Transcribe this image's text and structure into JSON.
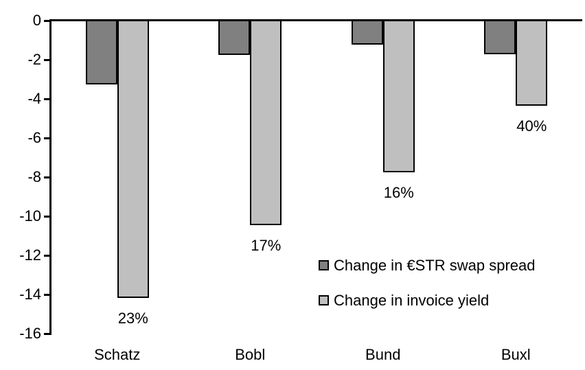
{
  "chart_data": {
    "type": "bar",
    "title": "",
    "xlabel": "",
    "ylabel": "",
    "categories": [
      "Schatz",
      "Bobl",
      "Bund",
      "Buxl"
    ],
    "series": [
      {
        "name": "Change in €STR swap spread",
        "key": "estr-swap-spread",
        "color": "#808080",
        "values": [
          -3.3,
          -1.8,
          -1.25,
          -1.75
        ]
      },
      {
        "name": "Change in invoice yield",
        "key": "invoice-yield",
        "color": "#BFBFBF",
        "values": [
          -14.2,
          -10.5,
          -7.8,
          -4.4
        ],
        "labels": [
          "23%",
          "17%",
          "16%",
          "40%"
        ]
      }
    ],
    "ylim": [
      -16,
      0
    ],
    "yticks": [
      0,
      -2,
      -4,
      -6,
      -8,
      -10,
      -12,
      -14,
      -16
    ],
    "grid": false,
    "legend_position": "inside-lower-right",
    "bar_border_color": "#000000",
    "axis_color": "#000000",
    "background_color": "#FFFFFF"
  }
}
